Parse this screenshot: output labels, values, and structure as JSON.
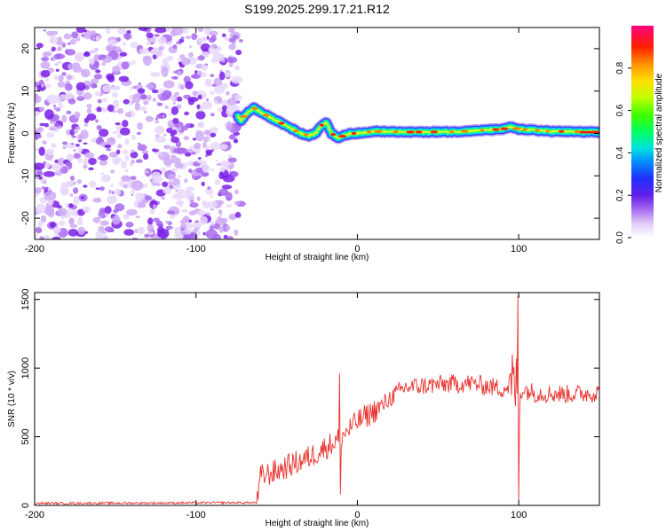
{
  "title": "S199.2025.299.17.21.R12",
  "chart_data": [
    {
      "type": "heatmap",
      "name": "spectrogram",
      "xlabel": "Height of straight line (km)",
      "ylabel": "Frequency (Hz)",
      "xlim": [
        -200,
        150
      ],
      "ylim": [
        -25,
        25
      ],
      "xticks": [
        -200,
        -100,
        0,
        100
      ],
      "xtick_labels": [
        "-200",
        "-100",
        "0",
        "100"
      ],
      "yticks": [
        -20,
        -10,
        0,
        10,
        20
      ],
      "ytick_labels": [
        "-20",
        "-10",
        "0",
        "10",
        "20"
      ],
      "noise_region_x": [
        -200,
        -72
      ],
      "signal_track": {
        "x": [
          -74,
          -72,
          -68,
          -64,
          -60,
          -55,
          -50,
          -45,
          -40,
          -35,
          -30,
          -26,
          -22,
          -19,
          -16,
          -12,
          -8,
          -4,
          0,
          10,
          30,
          60,
          90,
          95,
          100,
          120,
          150
        ],
        "freq": [
          4,
          3,
          5,
          6,
          5,
          4,
          3,
          2,
          1,
          0,
          -0.5,
          0,
          2,
          2.5,
          0,
          -1,
          -0.5,
          0,
          0,
          0.5,
          0.3,
          0.4,
          1,
          1.5,
          1,
          0.5,
          0.3
        ]
      },
      "colorbar": {
        "label": "Normalized spectral amplitude",
        "range": [
          0,
          1
        ],
        "ticks": [
          0.0,
          0.2,
          0.4,
          0.6,
          0.8
        ],
        "tick_labels": [
          "0.0",
          "0.2",
          "0.4",
          "0.6",
          "0.8"
        ]
      }
    },
    {
      "type": "line",
      "name": "snr",
      "xlabel": "Height of straight line (km)",
      "ylabel": "SNR (10 * v/v)",
      "xlim": [
        -200,
        150
      ],
      "ylim": [
        0,
        1550
      ],
      "xticks": [
        -200,
        -100,
        0,
        100
      ],
      "xtick_labels": [
        "-200",
        "-100",
        "0",
        "100"
      ],
      "yticks": [
        0,
        500,
        1000,
        1500
      ],
      "ytick_labels": [
        "0",
        "500",
        "1000",
        "1500"
      ],
      "color": "#e8322e",
      "series": {
        "anchor_x": [
          -200,
          -62,
          -60,
          -50,
          -40,
          -30,
          -20,
          -12,
          -10,
          0,
          15,
          20,
          30,
          50,
          70,
          90,
          98,
          100,
          102,
          110,
          130,
          150
        ],
        "anchor_y": [
          15,
          20,
          210,
          250,
          300,
          350,
          420,
          480,
          500,
          610,
          720,
          780,
          860,
          880,
          890,
          850,
          880,
          800,
          850,
          820,
          810,
          820
        ],
        "spikes": [
          {
            "x": -11,
            "y": 960
          },
          {
            "x": -10.5,
            "y": 80
          },
          {
            "x": 99.5,
            "y": 1530
          },
          {
            "x": 100,
            "y": 30
          },
          {
            "x": 96,
            "y": 1100
          }
        ]
      }
    }
  ]
}
